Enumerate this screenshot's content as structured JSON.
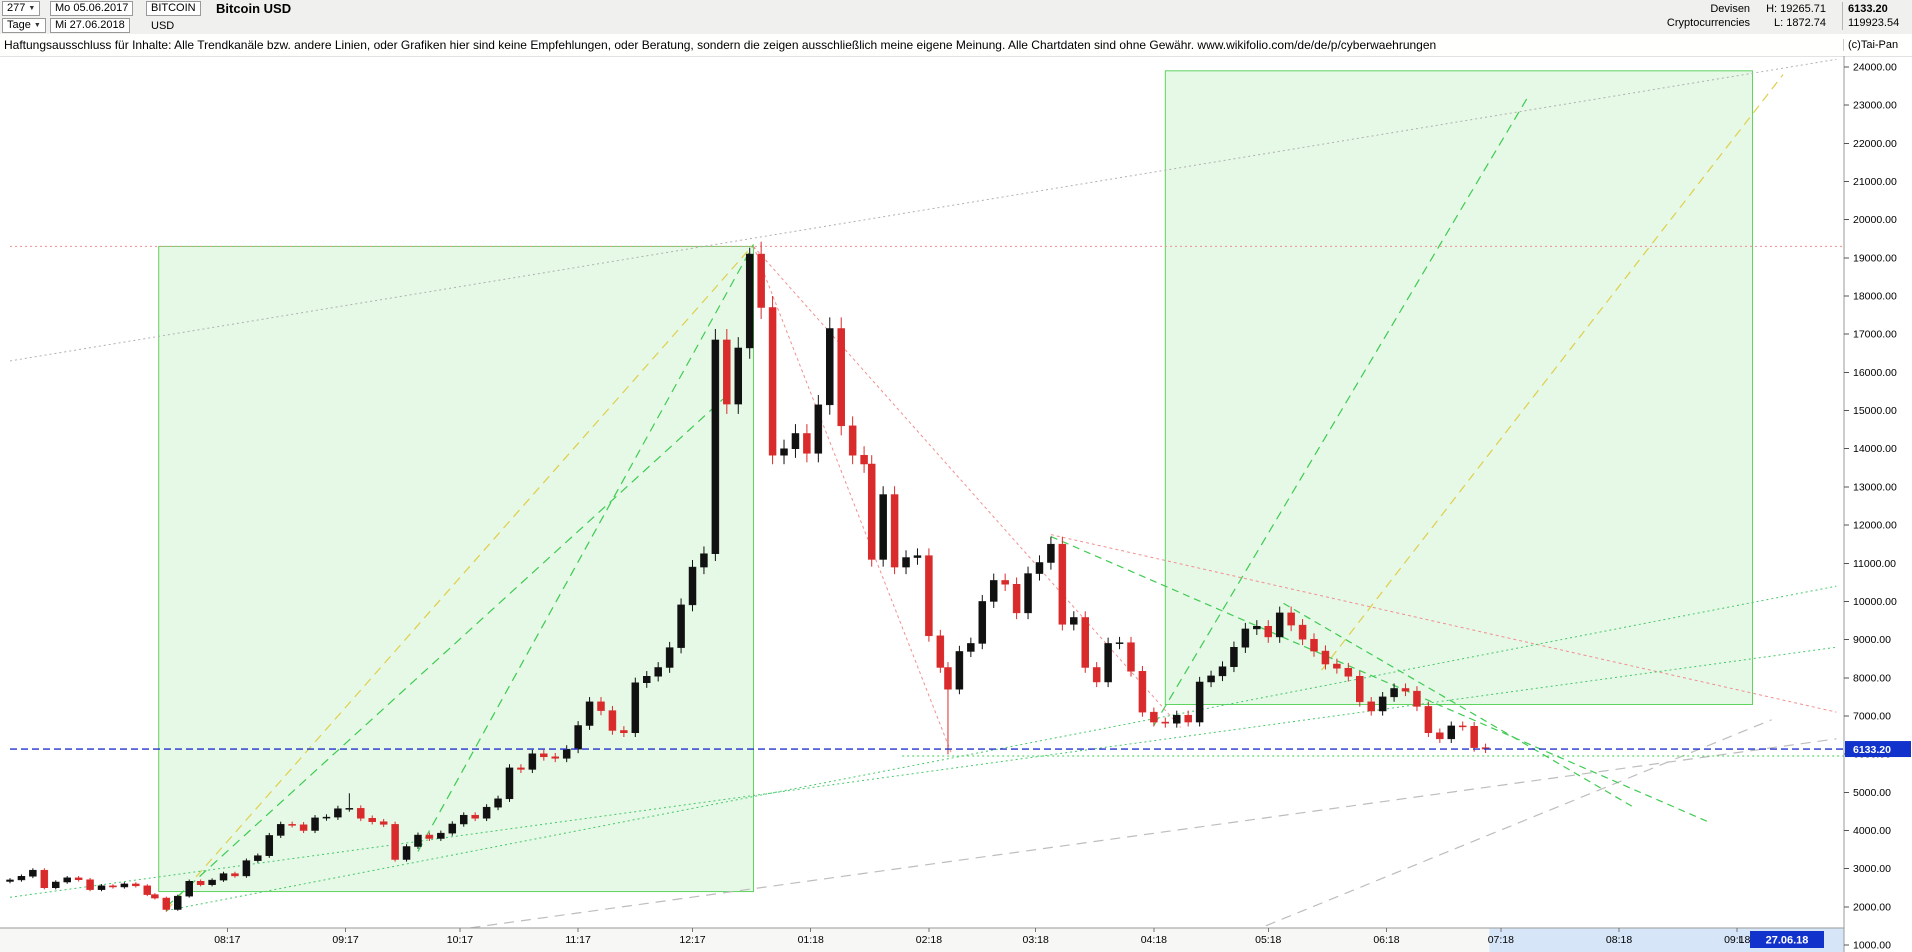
{
  "header": {
    "bar_number": "277",
    "date_from": "Mo 05.06.2017",
    "symbol_code": "BITCOIN",
    "title": "Bitcoin USD",
    "timeframe": "Tage",
    "date_to": "Mi 27.06.2018",
    "currency": "USD",
    "market_line1": "Devisen",
    "market_line2": "Cryptocurrencies",
    "high_label": "H: 19265.71",
    "low_label": "L: 1872.74",
    "last_price": "6133.20",
    "volume": "119923.54"
  },
  "disclaimer": {
    "text": "Haftungsausschluss für Inhalte: Alle Trendkanäle bzw. andere Linien, oder Grafiken hier sind keine Empfehlungen, oder Beratung, sondern die zeigen ausschließlich meine eigene Meinung. Alle Chartdaten sind ohne Gewähr.  www.wikifolio.com/de/de/p/cyberwaehrungen",
    "brand": "(c)Tai-Pan"
  },
  "axis": {
    "last_date_label": "27.06.18",
    "l_marker": "L"
  },
  "chart_data": {
    "type": "candlestick",
    "title": "Bitcoin USD",
    "ylabel": "USD",
    "ylim": [
      1000,
      24000
    ],
    "x_range": [
      "2017-06-05",
      "2018-09-29"
    ],
    "period_high": 19265.71,
    "period_low": 1872.74,
    "last_price": 6133.2,
    "future_zone_start": "2018-06-28",
    "y_ticks": [
      1000,
      2000,
      3000,
      4000,
      5000,
      6000,
      7000,
      8000,
      9000,
      10000,
      11000,
      12000,
      13000,
      14000,
      15000,
      16000,
      17000,
      18000,
      19000,
      20000,
      21000,
      22000,
      23000,
      24000
    ],
    "x_ticks": [
      [
        "2017-08-01",
        "08:17"
      ],
      [
        "2017-09-01",
        "09:17"
      ],
      [
        "2017-10-01",
        "10:17"
      ],
      [
        "2017-11-01",
        "11:17"
      ],
      [
        "2017-12-01",
        "12:17"
      ],
      [
        "2018-01-01",
        "01:18"
      ],
      [
        "2018-02-01",
        "02:18"
      ],
      [
        "2018-03-01",
        "03:18"
      ],
      [
        "2018-04-01",
        "04:18"
      ],
      [
        "2018-05-01",
        "05:18"
      ],
      [
        "2018-06-01",
        "06:18"
      ],
      [
        "2018-07-01",
        "07:18"
      ],
      [
        "2018-08-01",
        "08:18"
      ],
      [
        "2018-09-01",
        "09:18"
      ]
    ],
    "closes": [
      [
        "2017-06-05",
        2705
      ],
      [
        "2017-06-08",
        2800
      ],
      [
        "2017-06-11",
        2960
      ],
      [
        "2017-06-14",
        2500
      ],
      [
        "2017-06-17",
        2650
      ],
      [
        "2017-06-20",
        2760
      ],
      [
        "2017-06-23",
        2710
      ],
      [
        "2017-06-26",
        2450
      ],
      [
        "2017-06-29",
        2550
      ],
      [
        "2017-07-02",
        2520
      ],
      [
        "2017-07-05",
        2600
      ],
      [
        "2017-07-08",
        2550
      ],
      [
        "2017-07-11",
        2320
      ],
      [
        "2017-07-13",
        2230
      ],
      [
        "2017-07-16",
        1930
      ],
      [
        "2017-07-19",
        2280
      ],
      [
        "2017-07-22",
        2670
      ],
      [
        "2017-07-25",
        2580
      ],
      [
        "2017-07-28",
        2700
      ],
      [
        "2017-07-31",
        2870
      ],
      [
        "2017-08-03",
        2810
      ],
      [
        "2017-08-06",
        3210
      ],
      [
        "2017-08-09",
        3340
      ],
      [
        "2017-08-12",
        3870
      ],
      [
        "2017-08-15",
        4160
      ],
      [
        "2017-08-18",
        4150
      ],
      [
        "2017-08-21",
        4000
      ],
      [
        "2017-08-24",
        4330
      ],
      [
        "2017-08-27",
        4350
      ],
      [
        "2017-08-30",
        4570
      ],
      [
        "2017-09-02",
        4580
      ],
      [
        "2017-09-05",
        4320
      ],
      [
        "2017-09-08",
        4230
      ],
      [
        "2017-09-11",
        4160
      ],
      [
        "2017-09-14",
        3240
      ],
      [
        "2017-09-17",
        3580
      ],
      [
        "2017-09-20",
        3880
      ],
      [
        "2017-09-23",
        3790
      ],
      [
        "2017-09-26",
        3930
      ],
      [
        "2017-09-29",
        4170
      ],
      [
        "2017-10-02",
        4400
      ],
      [
        "2017-10-05",
        4320
      ],
      [
        "2017-10-08",
        4610
      ],
      [
        "2017-10-11",
        4830
      ],
      [
        "2017-10-14",
        5640
      ],
      [
        "2017-10-17",
        5600
      ],
      [
        "2017-10-20",
        6010
      ],
      [
        "2017-10-23",
        5930
      ],
      [
        "2017-10-26",
        5890
      ],
      [
        "2017-10-29",
        6130
      ],
      [
        "2017-11-01",
        6750
      ],
      [
        "2017-11-04",
        7370
      ],
      [
        "2017-11-07",
        7140
      ],
      [
        "2017-11-10",
        6620
      ],
      [
        "2017-11-13",
        6560
      ],
      [
        "2017-11-16",
        7870
      ],
      [
        "2017-11-19",
        8040
      ],
      [
        "2017-11-22",
        8270
      ],
      [
        "2017-11-25",
        8790
      ],
      [
        "2017-11-28",
        9910
      ],
      [
        "2017-12-01",
        10900
      ],
      [
        "2017-12-04",
        11250
      ],
      [
        "2017-12-07",
        16850
      ],
      [
        "2017-12-10",
        15170
      ],
      [
        "2017-12-13",
        16640
      ],
      [
        "2017-12-16",
        19100
      ],
      [
        "2017-12-19",
        17700
      ],
      [
        "2017-12-22",
        13830
      ],
      [
        "2017-12-25",
        14000
      ],
      [
        "2017-12-28",
        14400
      ],
      [
        "2017-12-31",
        13880
      ],
      [
        "2018-01-03",
        15150
      ],
      [
        "2018-01-06",
        17150
      ],
      [
        "2018-01-09",
        14600
      ],
      [
        "2018-01-12",
        13830
      ],
      [
        "2018-01-15",
        13600
      ],
      [
        "2018-01-17",
        11100
      ],
      [
        "2018-01-20",
        12800
      ],
      [
        "2018-01-23",
        10900
      ],
      [
        "2018-01-26",
        11150
      ],
      [
        "2018-01-29",
        11200
      ],
      [
        "2018-02-01",
        9100
      ],
      [
        "2018-02-04",
        8270
      ],
      [
        "2018-02-06",
        7700
      ],
      [
        "2018-02-09",
        8690
      ],
      [
        "2018-02-12",
        8900
      ],
      [
        "2018-02-15",
        10000
      ],
      [
        "2018-02-18",
        10550
      ],
      [
        "2018-02-21",
        10450
      ],
      [
        "2018-02-24",
        9700
      ],
      [
        "2018-02-27",
        10730
      ],
      [
        "2018-03-02",
        11020
      ],
      [
        "2018-03-05",
        11500
      ],
      [
        "2018-03-08",
        9400
      ],
      [
        "2018-03-11",
        9580
      ],
      [
        "2018-03-14",
        8270
      ],
      [
        "2018-03-17",
        7890
      ],
      [
        "2018-03-20",
        8900
      ],
      [
        "2018-03-23",
        8920
      ],
      [
        "2018-03-26",
        8170
      ],
      [
        "2018-03-29",
        7100
      ],
      [
        "2018-04-01",
        6840
      ],
      [
        "2018-04-04",
        6810
      ],
      [
        "2018-04-07",
        7020
      ],
      [
        "2018-04-10",
        6840
      ],
      [
        "2018-04-13",
        7890
      ],
      [
        "2018-04-16",
        8050
      ],
      [
        "2018-04-19",
        8290
      ],
      [
        "2018-04-22",
        8800
      ],
      [
        "2018-04-25",
        9280
      ],
      [
        "2018-04-28",
        9350
      ],
      [
        "2018-05-01",
        9070
      ],
      [
        "2018-05-04",
        9700
      ],
      [
        "2018-05-07",
        9380
      ],
      [
        "2018-05-10",
        9010
      ],
      [
        "2018-05-13",
        8700
      ],
      [
        "2018-05-16",
        8360
      ],
      [
        "2018-05-19",
        8250
      ],
      [
        "2018-05-22",
        8040
      ],
      [
        "2018-05-25",
        7370
      ],
      [
        "2018-05-28",
        7130
      ],
      [
        "2018-05-31",
        7500
      ],
      [
        "2018-06-03",
        7720
      ],
      [
        "2018-06-06",
        7650
      ],
      [
        "2018-06-09",
        7250
      ],
      [
        "2018-06-12",
        6560
      ],
      [
        "2018-06-15",
        6400
      ],
      [
        "2018-06-18",
        6740
      ],
      [
        "2018-06-21",
        6730
      ],
      [
        "2018-06-24",
        6170
      ],
      [
        "2018-06-27",
        6133.2
      ]
    ],
    "wick_overrides": {
      "2017-07-16": {
        "low": 1872.74
      },
      "2017-09-02": {
        "high": 4975
      },
      "2017-12-16": {
        "high": 19265.71
      },
      "2018-02-06": {
        "low": 5995
      }
    },
    "boxes": [
      {
        "name": "trend-box-2017",
        "from": [
          "2017-07-14",
          2400
        ],
        "to": [
          "2017-12-17",
          19300
        ]
      },
      {
        "name": "trend-box-2018",
        "from": [
          "2018-04-04",
          7300
        ],
        "to": [
          "2018-09-05",
          23900
        ]
      }
    ],
    "lines": [
      {
        "name": "resistance-high-line",
        "color": "#f09090",
        "dash": "2 3",
        "w": 1,
        "pts": [
          [
            "2017-06-05",
            19300
          ],
          [
            "2018-09-29",
            19300
          ]
        ]
      },
      {
        "name": "gray-longterm-dotted",
        "color": "#b0b0b0",
        "dash": "2 3",
        "w": 1,
        "pts": [
          [
            "2017-06-05",
            16300
          ],
          [
            "2018-09-27",
            24200
          ]
        ]
      },
      {
        "name": "yellow-uptrend-line",
        "color": "#e0cf4a",
        "dash": "9 6",
        "w": 1.2,
        "pts": [
          [
            "2017-07-16",
            1900
          ],
          [
            "2017-12-17",
            19350
          ]
        ]
      },
      {
        "name": "green-uptrend-steep",
        "color": "#3ecb52",
        "dash": "9 6",
        "w": 1.2,
        "pts": [
          [
            "2017-09-20",
            3450
          ],
          [
            "2017-12-17",
            19350
          ]
        ]
      },
      {
        "name": "green-uptrend-2",
        "color": "#3ecb52",
        "dash": "9 6",
        "w": 1.2,
        "pts": [
          [
            "2017-07-16",
            2000
          ],
          [
            "2017-12-09",
            15300
          ]
        ]
      },
      {
        "name": "green-uptrend-box2",
        "color": "#3ecb52",
        "dash": "9 6",
        "w": 1.2,
        "pts": [
          [
            "2018-04-01",
            6750
          ],
          [
            "2018-07-08",
            23200
          ]
        ]
      },
      {
        "name": "yellow-uptrend-2",
        "color": "#e0cf4a",
        "dash": "9 6",
        "w": 1.2,
        "pts": [
          [
            "2018-05-15",
            8200
          ],
          [
            "2018-09-13",
            23800
          ]
        ]
      },
      {
        "name": "red-downtrend-steep",
        "color": "#f09090",
        "dash": "3 3",
        "w": 1,
        "pts": [
          [
            "2017-12-17",
            19300
          ],
          [
            "2018-02-07",
            6000
          ]
        ]
      },
      {
        "name": "red-downtrend-mid",
        "color": "#f09090",
        "dash": "3 3",
        "w": 1,
        "pts": [
          [
            "2017-12-17",
            19300
          ],
          [
            "2018-04-08",
            6700
          ]
        ]
      },
      {
        "name": "red-downtrend-long",
        "color": "#f09090",
        "dash": "3 3",
        "w": 1,
        "pts": [
          [
            "2018-03-05",
            11750
          ],
          [
            "2018-09-27",
            7100
          ]
        ]
      },
      {
        "name": "gray-dashed-rising-1",
        "color": "#bdbdbd",
        "dash": "10 7",
        "w": 1.2,
        "pts": [
          [
            "2017-08-25",
            900
          ],
          [
            "2018-09-27",
            6400
          ]
        ]
      },
      {
        "name": "gray-dashed-rising-2",
        "color": "#bdbdbd",
        "dash": "10 7",
        "w": 1.2,
        "pts": [
          [
            "2018-04-18",
            1000
          ],
          [
            "2018-09-10",
            6900
          ]
        ]
      },
      {
        "name": "green-dotted-fan-1",
        "color": "#46c96a",
        "dash": "2 3",
        "w": 1,
        "pts": [
          [
            "2017-07-16",
            1900
          ],
          [
            "2018-09-27",
            10400
          ]
        ]
      },
      {
        "name": "green-dotted-fan-2",
        "color": "#46c96a",
        "dash": "2 3",
        "w": 1,
        "pts": [
          [
            "2017-06-05",
            2250
          ],
          [
            "2018-09-27",
            8800
          ]
        ]
      },
      {
        "name": "green-descending-1",
        "color": "#3ecb52",
        "dash": "7 5",
        "w": 1.2,
        "pts": [
          [
            "2018-05-05",
            9950
          ],
          [
            "2018-08-05",
            4600
          ]
        ]
      },
      {
        "name": "green-descending-2",
        "color": "#3ecb52",
        "dash": "7 5",
        "w": 1.2,
        "pts": [
          [
            "2018-03-05",
            11700
          ],
          [
            "2018-08-25",
            4200
          ]
        ]
      },
      {
        "name": "green-support-dotted",
        "color": "#3ecb52",
        "dash": "2 3",
        "w": 1,
        "above": true,
        "pts": [
          [
            "2018-01-25",
            5950
          ],
          [
            "2018-09-29",
            5950
          ]
        ]
      },
      {
        "name": "last-price-line",
        "color": "#2233cc",
        "dash": "7 4",
        "w": 1.3,
        "above": true,
        "pts": [
          [
            "2017-06-05",
            6133.2
          ],
          [
            "2018-09-29",
            6133.2
          ]
        ]
      }
    ],
    "colors": {
      "up": "#111111",
      "down": "#d92b2b",
      "box_fill": "rgba(140,225,140,0.22)",
      "box_stroke": "#5fd35f",
      "last_price_bg": "#1133cc",
      "future_zone": "#d6e6f8",
      "axis_strip": "#f7f7f5"
    }
  }
}
